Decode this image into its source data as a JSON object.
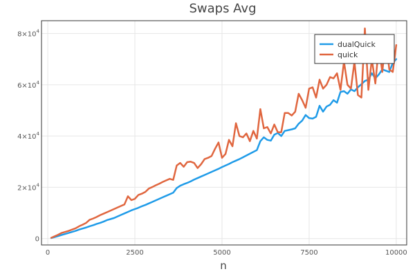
{
  "chart_data": {
    "type": "line",
    "title": "Swaps Avg",
    "xlabel": "n",
    "ylabel": "",
    "xlim": [
      -180,
      10300
    ],
    "ylim": [
      -2500,
      85000
    ],
    "x_ticks": [
      0,
      2500,
      5000,
      7500,
      10000
    ],
    "x_tick_labels": [
      "0",
      "2500",
      "5000",
      "7500",
      "10000"
    ],
    "y_ticks": [
      0,
      20000,
      40000,
      60000,
      80000
    ],
    "y_tick_labels": [
      {
        "mantissa": "0",
        "exp": ""
      },
      {
        "mantissa": "2×10",
        "exp": "4"
      },
      {
        "mantissa": "4×10",
        "exp": "4"
      },
      {
        "mantissa": "6×10",
        "exp": "4"
      },
      {
        "mantissa": "8×10",
        "exp": "4"
      }
    ],
    "grid": true,
    "legend_position": "top-right",
    "x": [
      100,
      200,
      300,
      400,
      500,
      600,
      700,
      800,
      900,
      1000,
      1100,
      1200,
      1300,
      1400,
      1500,
      1600,
      1700,
      1800,
      1900,
      2000,
      2100,
      2200,
      2300,
      2400,
      2500,
      2600,
      2700,
      2800,
      2900,
      3000,
      3100,
      3200,
      3300,
      3400,
      3500,
      3600,
      3700,
      3800,
      3900,
      4000,
      4100,
      4200,
      4300,
      4400,
      4500,
      4600,
      4700,
      4800,
      4900,
      5000,
      5100,
      5200,
      5300,
      5400,
      5500,
      5600,
      5700,
      5800,
      5900,
      6000,
      6100,
      6200,
      6300,
      6400,
      6500,
      6600,
      6700,
      6800,
      6900,
      7000,
      7100,
      7200,
      7300,
      7400,
      7500,
      7600,
      7700,
      7800,
      7900,
      8000,
      8100,
      8200,
      8300,
      8400,
      8500,
      8600,
      8700,
      8800,
      8900,
      9000,
      9100,
      9200,
      9300,
      9400,
      9500,
      9600,
      9700,
      9800,
      9900,
      10000
    ],
    "series": [
      {
        "name": "dualQuick",
        "color": "#1f9be8",
        "values": [
          200,
          600,
          1000,
          1400,
          1800,
          2200,
          2600,
          3000,
          3500,
          3900,
          4300,
          4800,
          5200,
          5700,
          6100,
          6600,
          7200,
          7600,
          8000,
          8600,
          9200,
          9800,
          10400,
          11000,
          11500,
          12000,
          12600,
          13100,
          13700,
          14300,
          14900,
          15500,
          16100,
          16700,
          17300,
          17900,
          19700,
          20600,
          21200,
          21700,
          22300,
          23000,
          23600,
          24200,
          24800,
          25400,
          26000,
          26600,
          27200,
          27900,
          28500,
          29100,
          29800,
          30400,
          31000,
          31700,
          32400,
          33100,
          33800,
          34500,
          38000,
          39500,
          38500,
          38200,
          40500,
          41200,
          40000,
          42000,
          42300,
          42600,
          43000,
          44800,
          46000,
          48200,
          47000,
          46800,
          47500,
          51800,
          49500,
          51500,
          52200,
          54000,
          53000,
          57200,
          57500,
          56500,
          58200,
          57500,
          59000,
          60200,
          61500,
          62000,
          64500,
          62500,
          64000,
          66000,
          65500,
          65000,
          68500,
          70000
        ]
      },
      {
        "name": "quick",
        "color": "#e0663f",
        "values": [
          300,
          900,
          1500,
          2200,
          2600,
          3000,
          3500,
          4000,
          4800,
          5400,
          6100,
          7300,
          7800,
          8400,
          9100,
          9700,
          10300,
          10900,
          11500,
          12100,
          12700,
          13300,
          16500,
          15000,
          15500,
          17000,
          17500,
          18200,
          19500,
          20100,
          20800,
          21400,
          22100,
          22700,
          23300,
          22900,
          28500,
          29500,
          28000,
          29800,
          30000,
          29500,
          27500,
          29000,
          31000,
          31500,
          32200,
          35000,
          37500,
          31500,
          33000,
          38500,
          36000,
          45000,
          40000,
          39500,
          41000,
          38000,
          42000,
          39000,
          50500,
          43000,
          43500,
          41000,
          44500,
          41500,
          41500,
          49000,
          49000,
          48000,
          49500,
          56500,
          54000,
          51000,
          58500,
          59000,
          55000,
          62000,
          58500,
          60000,
          63000,
          62500,
          64500,
          58000,
          69000,
          60000,
          58500,
          69000,
          56000,
          55000,
          82000,
          58000,
          70000,
          60500,
          75000,
          65000,
          78000,
          66000,
          65000,
          75500
        ]
      }
    ]
  }
}
